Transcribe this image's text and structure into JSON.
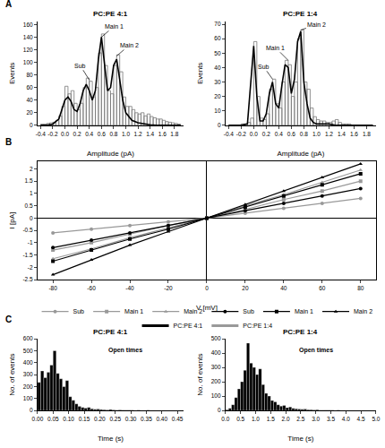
{
  "chart_data": [
    {
      "panel": "A",
      "type": "histogram",
      "title": "PC:PE 4:1",
      "x_label": "Amplitude (pA)",
      "y_label": "Events",
      "marker": "outline",
      "color": "#777777",
      "bins": [
        -0.4,
        -0.35,
        -0.3,
        -0.25,
        -0.2,
        -0.15,
        -0.1,
        -0.05,
        0,
        0.05,
        0.1,
        0.15,
        0.2,
        0.25,
        0.3,
        0.35,
        0.4,
        0.45,
        0.5,
        0.55,
        0.6,
        0.65,
        0.7,
        0.75,
        0.8,
        0.85,
        0.9,
        0.95,
        1,
        1.05,
        1.1,
        1.15,
        1.2,
        1.25,
        1.3,
        1.35,
        1.4,
        1.45,
        1.5,
        1.55,
        1.6,
        1.65,
        1.7,
        1.75,
        1.8,
        1.85,
        1.9
      ],
      "counts": [
        2,
        2,
        3,
        4,
        5,
        8,
        15,
        30,
        62,
        50,
        55,
        35,
        25,
        35,
        60,
        75,
        70,
        45,
        60,
        115,
        145,
        95,
        55,
        50,
        95,
        112,
        85,
        45,
        30,
        30,
        25,
        20,
        18,
        20,
        15,
        18,
        14,
        12,
        10,
        10,
        8,
        6,
        5,
        4,
        3,
        2
      ],
      "fit": {
        "color": "#000000",
        "x": [
          -0.4,
          -0.3,
          -0.2,
          -0.1,
          0,
          0.05,
          0.1,
          0.15,
          0.2,
          0.25,
          0.3,
          0.35,
          0.4,
          0.45,
          0.5,
          0.55,
          0.6,
          0.65,
          0.7,
          0.75,
          0.8,
          0.85,
          0.9,
          0.95,
          1,
          1.1,
          1.2,
          1.3,
          1.4,
          1.5,
          1.6,
          1.7,
          1.8,
          1.9
        ],
        "y": [
          0,
          0,
          2,
          10,
          40,
          45,
          38,
          25,
          22,
          35,
          55,
          65,
          55,
          40,
          55,
          105,
          140,
          95,
          55,
          60,
          95,
          105,
          75,
          40,
          20,
          8,
          4,
          2,
          1,
          0,
          0,
          0,
          0,
          0
        ]
      },
      "annotations": [
        {
          "text": "Sub",
          "x": 0.4,
          "y": 72
        },
        {
          "text": "Main 1",
          "x": 0.6,
          "y": 140
        },
        {
          "text": "Main 2",
          "x": 0.85,
          "y": 110
        }
      ],
      "xlim": [
        -0.45,
        1.95
      ],
      "xticks": [
        -0.4,
        -0.2,
        {
          "value": 0,
          "label": "0.0"
        },
        0.2,
        0.4,
        0.6,
        0.8,
        {
          "value": 1,
          "label": "1.0"
        },
        1.2,
        1.4,
        1.6,
        1.8
      ],
      "ylim": [
        0,
        165
      ],
      "yticks": [
        0,
        20,
        40,
        60,
        80,
        100,
        120,
        140,
        160
      ],
      "grid": false
    },
    {
      "type": "histogram",
      "title": "PC:PE 1:4",
      "x_label": "Amplitude (pA)",
      "y_label": "Events",
      "marker": "outline",
      "color": "#777777",
      "bins": [
        -0.4,
        -0.35,
        -0.3,
        -0.25,
        -0.2,
        -0.15,
        -0.1,
        -0.05,
        0,
        0.05,
        0.1,
        0.15,
        0.2,
        0.25,
        0.3,
        0.35,
        0.4,
        0.45,
        0.5,
        0.55,
        0.6,
        0.65,
        0.7,
        0.75,
        0.8,
        0.85,
        0.9,
        0.95,
        1,
        1.05,
        1.1,
        1.15,
        1.2,
        1.25,
        1.3,
        1.35,
        1.4,
        1.45,
        1.5,
        1.55,
        1.6,
        1.65,
        1.7,
        1.75,
        1.8,
        1.85,
        1.9
      ],
      "counts": [
        0,
        0,
        0,
        0,
        1,
        1,
        2,
        5,
        58,
        20,
        5,
        4,
        8,
        25,
        32,
        15,
        12,
        30,
        45,
        42,
        20,
        30,
        60,
        66,
        30,
        25,
        12,
        6,
        4,
        3,
        3,
        2,
        2,
        3,
        4,
        2,
        1,
        1,
        1,
        0,
        0,
        0,
        0,
        0,
        0,
        0
      ],
      "fit": {
        "color": "#000000",
        "x": [
          -0.4,
          -0.3,
          -0.2,
          -0.1,
          0,
          0.05,
          0.1,
          0.15,
          0.2,
          0.25,
          0.3,
          0.35,
          0.4,
          0.45,
          0.5,
          0.55,
          0.6,
          0.65,
          0.7,
          0.75,
          0.8,
          0.85,
          0.9,
          0.95,
          1,
          1.1,
          1.2,
          1.3,
          1.4,
          1.5,
          1.6,
          1.7,
          1.8,
          1.9
        ],
        "y": [
          0,
          0,
          0,
          1,
          55,
          20,
          3,
          3,
          8,
          22,
          30,
          15,
          12,
          28,
          42,
          40,
          22,
          32,
          58,
          65,
          30,
          15,
          5,
          2,
          1,
          1,
          1,
          0,
          0,
          0,
          0,
          0,
          0,
          0
        ]
      },
      "annotations": [
        {
          "text": "Sub",
          "x": 0.3,
          "y": 32
        },
        {
          "text": "Main 1",
          "x": 0.55,
          "y": 45
        },
        {
          "text": "Main 2",
          "x": 0.75,
          "y": 66
        }
      ],
      "xlim": [
        -0.45,
        1.95
      ],
      "xticks": [
        -0.4,
        -0.2,
        {
          "value": 0,
          "label": "0.0"
        },
        0.2,
        0.4,
        0.6,
        0.8,
        {
          "value": 1,
          "label": "1.0"
        },
        1.2,
        1.4,
        1.6,
        1.8
      ],
      "ylim": [
        0,
        72
      ],
      "yticks": [
        0,
        10,
        20,
        30,
        40,
        50,
        60,
        70
      ],
      "grid": false
    },
    {
      "panel": "B",
      "type": "line",
      "x_label": "V [mV]",
      "y_label": "I [pA]",
      "legend": "bottom",
      "x": [
        -80,
        -60,
        -40,
        -20,
        0,
        20,
        40,
        60,
        80
      ],
      "series": [
        {
          "name": "Sub",
          "group": "PC:PE 1:4",
          "color": "#999999",
          "marker": "circle",
          "values": [
            -0.6,
            -0.45,
            -0.3,
            -0.15,
            0,
            0.2,
            0.4,
            0.6,
            0.8
          ]
        },
        {
          "name": "Main 1",
          "group": "PC:PE 1:4",
          "color": "#999999",
          "marker": "square",
          "values": [
            -1.3,
            -1.0,
            -0.65,
            -0.3,
            0,
            0.35,
            0.75,
            1.1,
            1.5
          ]
        },
        {
          "name": "Main 2",
          "group": "PC:PE 1:4",
          "color": "#999999",
          "marker": "triangle-up",
          "values": [
            -1.65,
            -1.25,
            -0.8,
            -0.4,
            0,
            0.5,
            0.95,
            1.45,
            1.95
          ]
        },
        {
          "name": "Sub",
          "group": "PC:PE 4:1",
          "color": "#000000",
          "marker": "circle",
          "values": [
            -1.2,
            -0.9,
            -0.6,
            -0.3,
            0,
            0.3,
            0.6,
            0.9,
            1.2
          ]
        },
        {
          "name": "Main 1",
          "group": "PC:PE 4:1",
          "color": "#000000",
          "marker": "square",
          "values": [
            -1.75,
            -1.3,
            -0.85,
            -0.45,
            0,
            0.45,
            0.9,
            1.35,
            1.8
          ]
        },
        {
          "name": "Main 2",
          "group": "PC:PE 4:1",
          "color": "#000000",
          "marker": "triangle-up",
          "values": [
            -2.3,
            -1.7,
            -1.1,
            -0.55,
            0,
            0.55,
            1.1,
            1.65,
            2.2
          ]
        }
      ],
      "groups": [
        {
          "name": "PC:PE 4:1",
          "color": "#000000"
        },
        {
          "name": "PC:PE 1:4",
          "color": "#999999"
        }
      ],
      "xlim": [
        -88,
        88
      ],
      "xticks": [
        -80,
        -60,
        -40,
        -20,
        0,
        20,
        40,
        60,
        80
      ],
      "ylim": [
        -2.5,
        2.3
      ],
      "yticks": [
        -2.5,
        -2,
        -1.5,
        -1,
        -0.5,
        0,
        0.5,
        1,
        1.5,
        2
      ],
      "grid": false
    },
    {
      "panel": "C",
      "type": "histogram",
      "title": "PC:PE 4:1",
      "x_label": "Time (s)",
      "y_label": "No. of events",
      "marker": "filled",
      "color": "#000000",
      "annotations": [
        {
          "text": "Open times"
        }
      ],
      "bins": [
        0,
        0.01,
        0.02,
        0.03,
        0.04,
        0.05,
        0.06,
        0.07,
        0.08,
        0.09,
        0.1,
        0.11,
        0.12,
        0.13,
        0.14,
        0.15,
        0.16,
        0.17,
        0.18,
        0.19,
        0.2,
        0.21,
        0.22,
        0.23,
        0.24,
        0.25,
        0.26,
        0.27,
        0.28,
        0.29,
        0.3,
        0.31,
        0.32,
        0.33,
        0.34,
        0.35,
        0.36,
        0.37,
        0.38,
        0.39,
        0.4,
        0.41,
        0.42,
        0.43,
        0.44,
        0.45
      ],
      "counts": [
        235,
        330,
        275,
        320,
        380,
        500,
        310,
        265,
        200,
        250,
        115,
        85,
        55,
        35,
        25,
        20,
        25,
        15,
        10,
        12,
        8,
        6,
        5,
        8,
        4,
        3,
        5,
        2,
        3,
        2,
        2,
        1,
        2,
        1,
        1,
        2,
        0,
        1,
        0,
        1,
        0,
        0,
        1,
        0,
        0
      ],
      "xlim": [
        0,
        0.47
      ],
      "xticks": [
        {
          "value": 0,
          "label": "0.00"
        },
        0.05,
        {
          "value": 0.1,
          "label": "0.10"
        },
        0.15,
        {
          "value": 0.2,
          "label": "0.20"
        },
        0.25,
        {
          "value": 0.3,
          "label": "0.30"
        },
        0.35,
        {
          "value": 0.4,
          "label": "0.40"
        },
        0.45
      ],
      "ylim": [
        0,
        600
      ],
      "yticks": [
        0,
        100,
        200,
        300,
        400,
        500,
        600
      ],
      "grid": false
    },
    {
      "type": "histogram",
      "title": "PC:PE 1:4",
      "x_label": "Time (s)",
      "y_label": "No. of events",
      "marker": "filled",
      "color": "#000000",
      "annotations": [
        {
          "text": "Open times"
        }
      ],
      "bins": [
        0,
        0.1,
        0.2,
        0.3,
        0.4,
        0.5,
        0.6,
        0.7,
        0.8,
        0.9,
        1,
        1.1,
        1.2,
        1.3,
        1.4,
        1.5,
        1.6,
        1.7,
        1.8,
        1.9,
        2,
        2.1,
        2.2,
        2.3,
        2.4,
        2.5,
        2.6,
        2.7,
        2.8,
        2.9,
        3,
        3.1,
        3.2,
        3.3,
        3.4,
        3.5,
        3.6,
        3.7,
        3.8,
        3.9,
        4,
        4.1,
        4.2,
        4.3,
        4.4,
        4.5,
        4.6,
        4.7,
        4.8,
        4.9,
        5
      ],
      "counts": [
        5,
        15,
        40,
        90,
        150,
        200,
        280,
        470,
        330,
        300,
        250,
        290,
        180,
        120,
        100,
        70,
        60,
        40,
        30,
        35,
        20,
        25,
        15,
        12,
        10,
        8,
        10,
        6,
        5,
        4,
        5,
        3,
        3,
        2,
        2,
        3,
        1,
        2,
        1,
        1,
        1,
        0,
        1,
        0,
        1,
        0,
        0,
        1,
        0,
        0
      ],
      "xlim": [
        0,
        5
      ],
      "xticks": [
        {
          "value": 0,
          "label": "0.0"
        },
        0.5,
        {
          "value": 1,
          "label": "1.0"
        },
        1.5,
        {
          "value": 2,
          "label": "2.0"
        },
        2.5,
        {
          "value": 3,
          "label": "3.0"
        },
        3.5,
        {
          "value": 4,
          "label": "4.0"
        },
        4.5,
        {
          "value": 5,
          "label": "5.0"
        }
      ],
      "ylim": [
        0,
        500
      ],
      "yticks": [
        0,
        100,
        200,
        300,
        400,
        500
      ],
      "grid": false
    }
  ]
}
